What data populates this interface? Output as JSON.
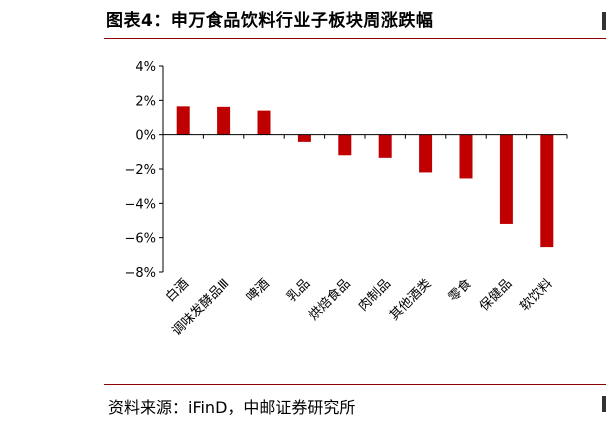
{
  "header": {
    "title": "图表4：申万食品饮料行业子板块周涨跌幅"
  },
  "footer": {
    "source": "资料来源：iFinD，中邮证券研究所"
  },
  "chart_data": {
    "type": "bar",
    "title": "",
    "xlabel": "",
    "ylabel": "",
    "categories": [
      "白酒",
      "调味发酵品Ⅲ",
      "啤酒",
      "乳品",
      "烘焙食品",
      "肉制品",
      "其他酒类",
      "零食",
      "保健品",
      "软饮料"
    ],
    "values": [
      1.65,
      1.62,
      1.4,
      -0.42,
      -1.2,
      -1.35,
      -2.2,
      -2.55,
      -5.2,
      -6.55
    ],
    "ylim": [
      -8,
      4
    ],
    "yticks": [
      4,
      2,
      0,
      -2,
      -4,
      -6,
      -8
    ],
    "yticklabels": [
      "4%",
      "2%",
      "0%",
      "−2%",
      "−4%",
      "−6%",
      "−8%"
    ],
    "bar_color": "#c00000",
    "grid": false,
    "legend": "none"
  }
}
